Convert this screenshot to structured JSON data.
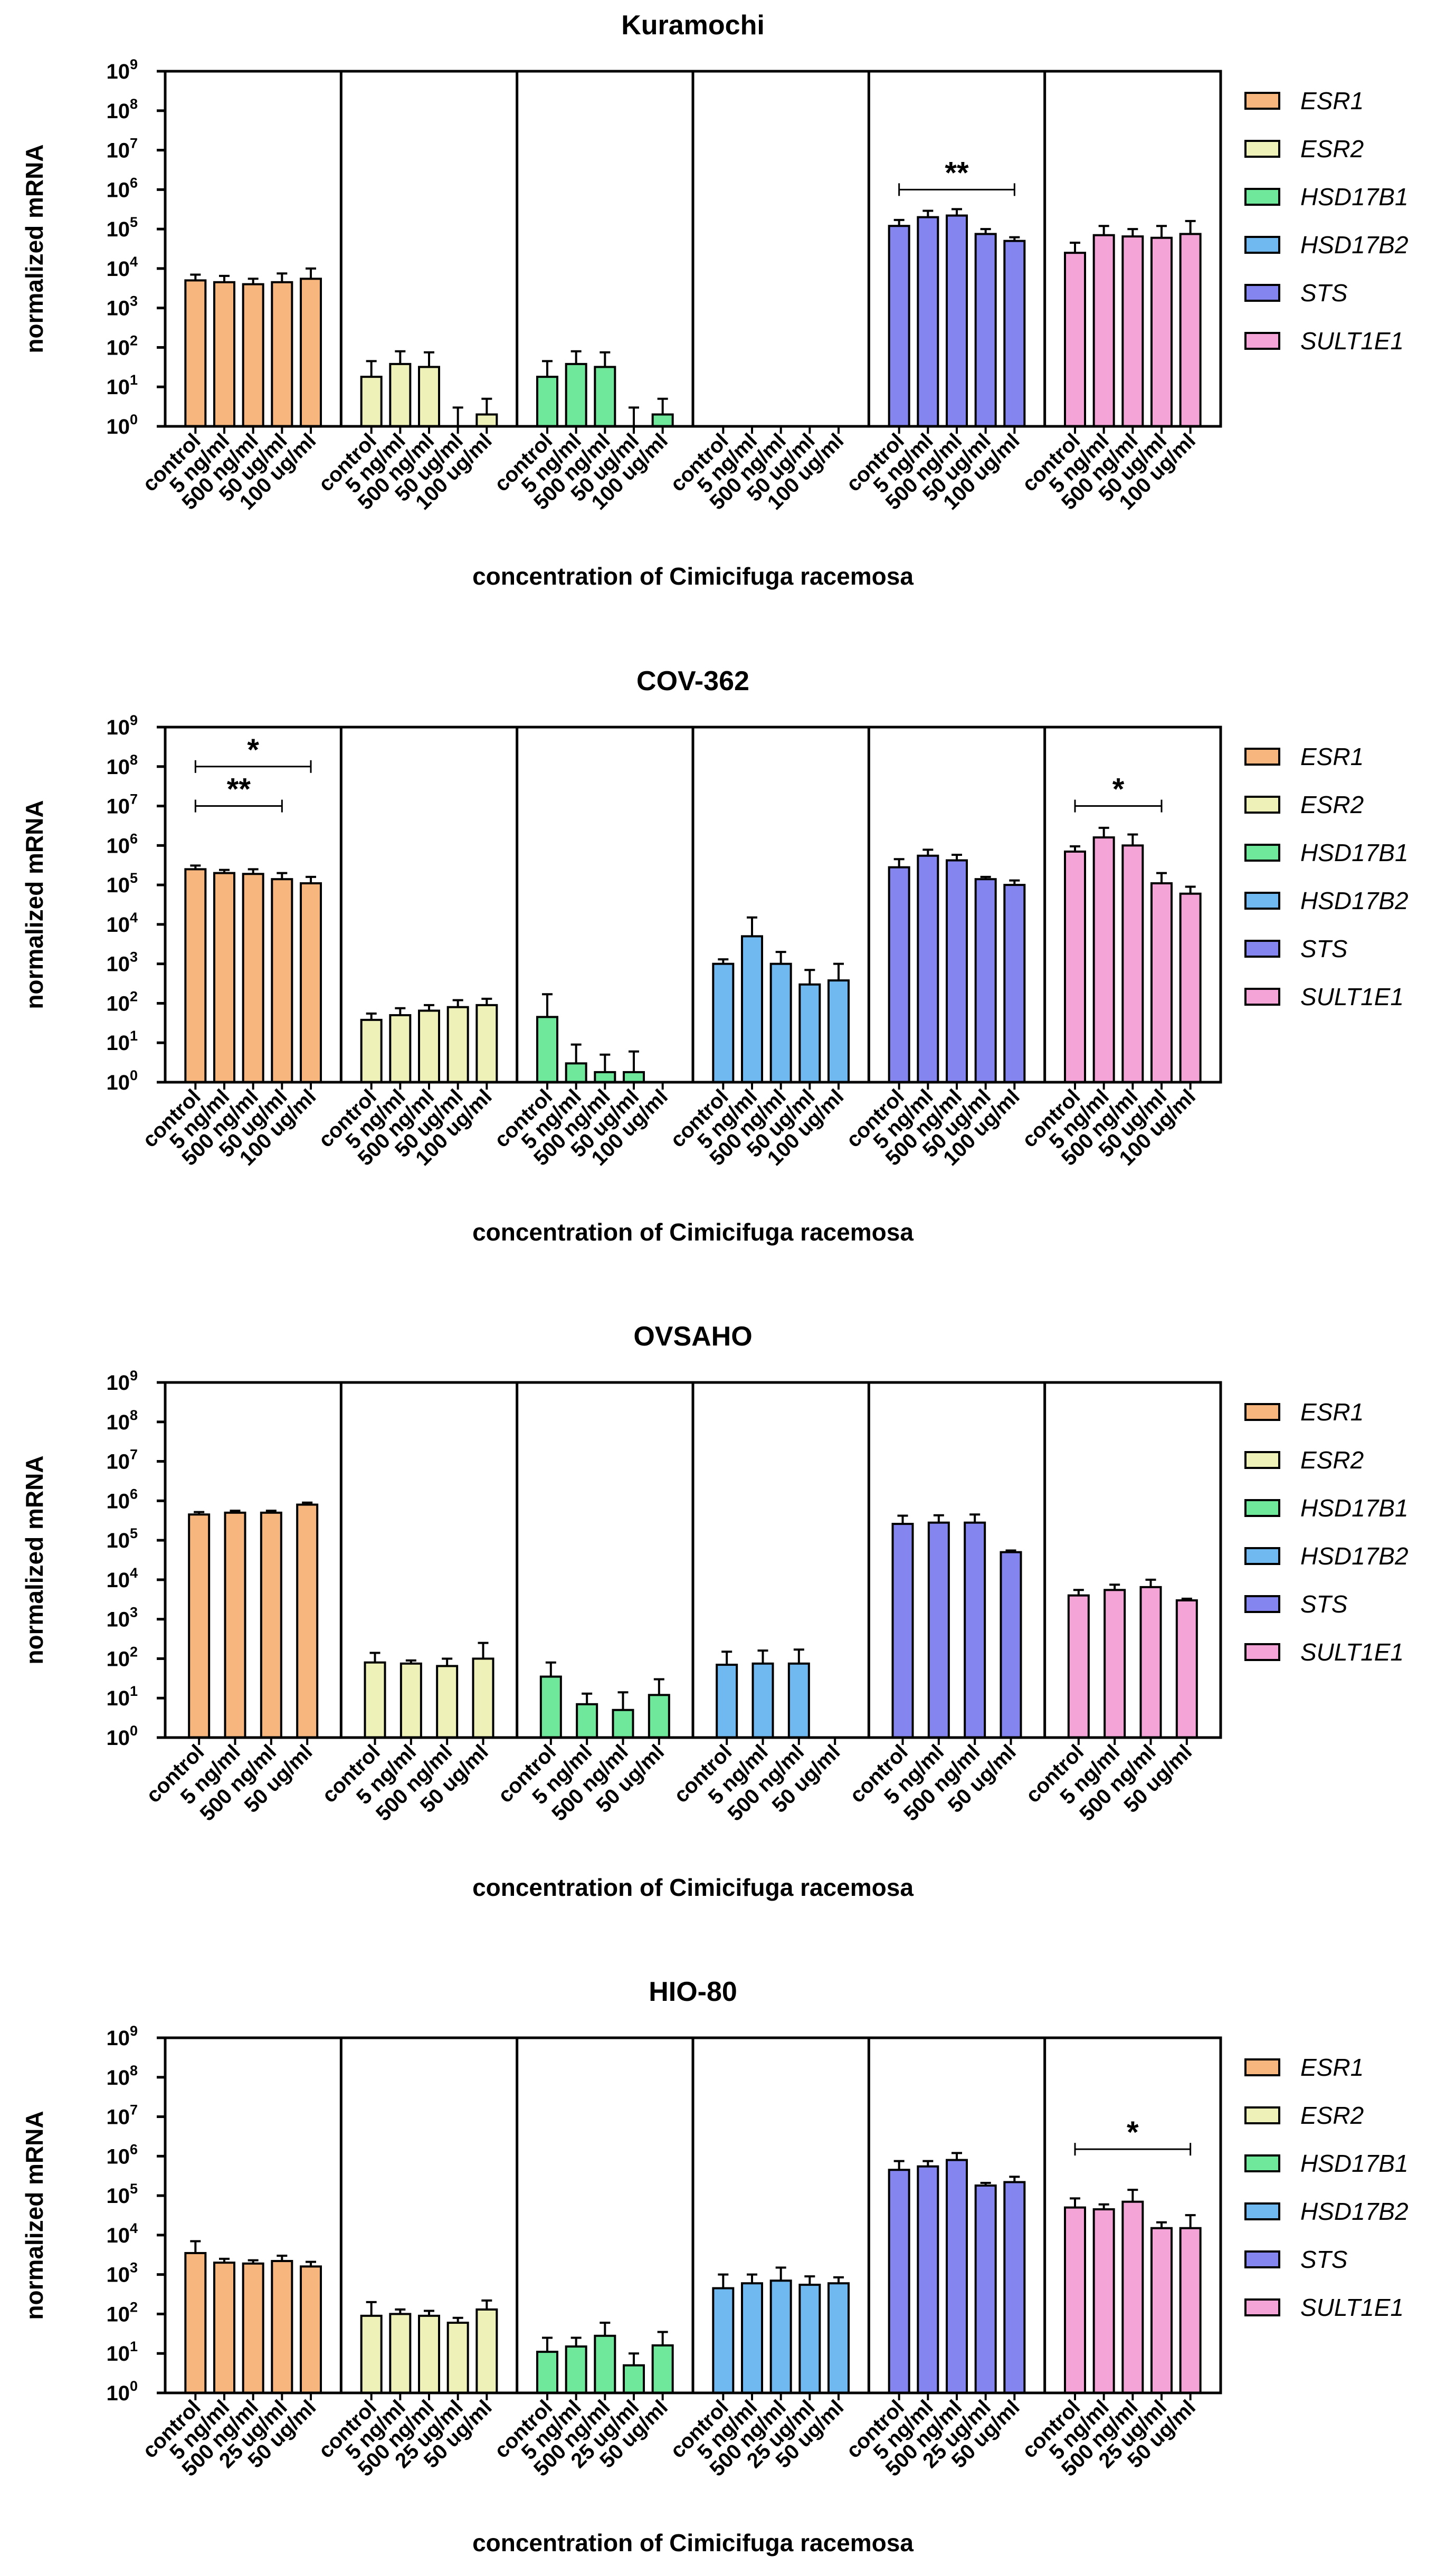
{
  "colors": {
    "ESR1": "#f6b67e",
    "ESR2": "#eef2b8",
    "HSD17B1": "#6fe89c",
    "HSD17B2": "#6fb8f0",
    "STS": "#8585f0",
    "SULT1E1": "#f4a4d6",
    "stroke": "#000000"
  },
  "chart_data": [
    {
      "type": "bar",
      "title": "Kuramochi",
      "xlabel": "concentration of Cimicifuga racemosa",
      "ylabel": "normalized mRNA",
      "yscale": "log10",
      "ylim": [
        1,
        1000000000
      ],
      "yticks": [
        {
          "base": "10",
          "exp": "0"
        },
        {
          "base": "10",
          "exp": "1"
        },
        {
          "base": "10",
          "exp": "2"
        },
        {
          "base": "10",
          "exp": "3"
        },
        {
          "base": "10",
          "exp": "4"
        },
        {
          "base": "10",
          "exp": "5"
        },
        {
          "base": "10",
          "exp": "6"
        },
        {
          "base": "10",
          "exp": "7"
        },
        {
          "base": "10",
          "exp": "8"
        },
        {
          "base": "10",
          "exp": "9"
        }
      ],
      "categories": [
        "control",
        "5 ng/ml",
        "500 ng/ml",
        "50 ug/ml",
        "100 ug/ml"
      ],
      "series": [
        {
          "name": "ESR1",
          "values": [
            5000,
            4500,
            4000,
            4500,
            5500
          ],
          "errors": [
            7000,
            6500,
            5500,
            7500,
            10000
          ]
        },
        {
          "name": "ESR2",
          "values": [
            18,
            38,
            32,
            1,
            2
          ],
          "errors": [
            45,
            80,
            75,
            3,
            5
          ]
        },
        {
          "name": "HSD17B1",
          "values": [
            18,
            38,
            32,
            1,
            2
          ],
          "errors": [
            45,
            80,
            75,
            3,
            5
          ]
        },
        {
          "name": "HSD17B2",
          "values": [
            1,
            1,
            1,
            1,
            1
          ],
          "errors": [
            1,
            1,
            1,
            1,
            1
          ]
        },
        {
          "name": "STS",
          "values": [
            120000,
            200000,
            220000,
            75000,
            50000
          ],
          "errors": [
            170000,
            290000,
            320000,
            100000,
            62000
          ]
        },
        {
          "name": "SULT1E1",
          "values": [
            25000,
            70000,
            65000,
            60000,
            75000
          ],
          "errors": [
            45000,
            120000,
            100000,
            120000,
            160000
          ]
        }
      ],
      "significance": [
        {
          "series": "STS",
          "from": 0,
          "to": 4,
          "label": "**",
          "y": 1000000
        }
      ]
    },
    {
      "type": "bar",
      "title": "COV-362",
      "xlabel": "concentration of Cimicifuga racemosa",
      "ylabel": "normalized mRNA",
      "yscale": "log10",
      "ylim": [
        1,
        1000000000
      ],
      "yticks": [
        {
          "base": "10",
          "exp": "0"
        },
        {
          "base": "10",
          "exp": "1"
        },
        {
          "base": "10",
          "exp": "2"
        },
        {
          "base": "10",
          "exp": "3"
        },
        {
          "base": "10",
          "exp": "4"
        },
        {
          "base": "10",
          "exp": "5"
        },
        {
          "base": "10",
          "exp": "6"
        },
        {
          "base": "10",
          "exp": "7"
        },
        {
          "base": "10",
          "exp": "8"
        },
        {
          "base": "10",
          "exp": "9"
        }
      ],
      "categories": [
        "control",
        "5 ng/ml",
        "500 ng/ml",
        "50 ug/ml",
        "100 ug/ml"
      ],
      "series": [
        {
          "name": "ESR1",
          "values": [
            250000,
            200000,
            190000,
            140000,
            110000
          ],
          "errors": [
            310000,
            240000,
            250000,
            200000,
            160000
          ]
        },
        {
          "name": "ESR2",
          "values": [
            38,
            50,
            65,
            80,
            90
          ],
          "errors": [
            55,
            75,
            90,
            120,
            130
          ]
        },
        {
          "name": "HSD17B1",
          "values": [
            45,
            3,
            1.8,
            1.8,
            1
          ],
          "errors": [
            170,
            9,
            5,
            6,
            1
          ]
        },
        {
          "name": "HSD17B2",
          "values": [
            1000,
            5000,
            1000,
            300,
            380
          ],
          "errors": [
            1300,
            15000,
            2000,
            700,
            1000
          ]
        },
        {
          "name": "STS",
          "values": [
            280000,
            550000,
            420000,
            140000,
            100000
          ],
          "errors": [
            450000,
            780000,
            580000,
            160000,
            130000
          ]
        },
        {
          "name": "SULT1E1",
          "values": [
            700000,
            1600000,
            1000000,
            110000,
            60000
          ],
          "errors": [
            950000,
            2800000,
            1900000,
            200000,
            90000
          ]
        }
      ],
      "significance": [
        {
          "series": "ESR1",
          "from": 0,
          "to": 4,
          "label": "*",
          "y": 100000000
        },
        {
          "series": "ESR1",
          "from": 0,
          "to": 3,
          "label": "**",
          "y": 10000000
        },
        {
          "series": "SULT1E1",
          "from": 0,
          "to": 3,
          "label": "*",
          "y": 10000000
        }
      ]
    },
    {
      "type": "bar",
      "title": "OVSAHO",
      "xlabel": "concentration of Cimicifuga racemosa",
      "ylabel": "normalized mRNA",
      "yscale": "log10",
      "ylim": [
        1,
        1000000000
      ],
      "yticks": [
        {
          "base": "10",
          "exp": "0"
        },
        {
          "base": "10",
          "exp": "1"
        },
        {
          "base": "10",
          "exp": "2"
        },
        {
          "base": "10",
          "exp": "3"
        },
        {
          "base": "10",
          "exp": "4"
        },
        {
          "base": "10",
          "exp": "5"
        },
        {
          "base": "10",
          "exp": "6"
        },
        {
          "base": "10",
          "exp": "7"
        },
        {
          "base": "10",
          "exp": "8"
        },
        {
          "base": "10",
          "exp": "9"
        }
      ],
      "categories": [
        "control",
        "5 ng/ml",
        "500 ng/ml",
        "50 ug/ml"
      ],
      "series": [
        {
          "name": "ESR1",
          "values": [
            450000,
            500000,
            500000,
            800000
          ],
          "errors": [
            520000,
            560000,
            560000,
            900000
          ]
        },
        {
          "name": "ESR2",
          "values": [
            80,
            75,
            65,
            100
          ],
          "errors": [
            140,
            90,
            100,
            250
          ]
        },
        {
          "name": "HSD17B1",
          "values": [
            35,
            7,
            5,
            12
          ],
          "errors": [
            80,
            13,
            14,
            30
          ]
        },
        {
          "name": "HSD17B2",
          "values": [
            70,
            75,
            75,
            1
          ],
          "errors": [
            150,
            160,
            170,
            1
          ]
        },
        {
          "name": "STS",
          "values": [
            260000,
            280000,
            280000,
            50000
          ],
          "errors": [
            420000,
            430000,
            450000,
            55000
          ]
        },
        {
          "name": "SULT1E1",
          "values": [
            4000,
            5500,
            6500,
            3000
          ],
          "errors": [
            5500,
            7500,
            10000,
            3300
          ]
        }
      ],
      "significance": []
    },
    {
      "type": "bar",
      "title": "HIO-80",
      "xlabel": "concentration of Cimicifuga racemosa",
      "ylabel": "normalized mRNA",
      "yscale": "log10",
      "ylim": [
        1,
        1000000000
      ],
      "yticks": [
        {
          "base": "10",
          "exp": "0"
        },
        {
          "base": "10",
          "exp": "1"
        },
        {
          "base": "10",
          "exp": "2"
        },
        {
          "base": "10",
          "exp": "3"
        },
        {
          "base": "10",
          "exp": "4"
        },
        {
          "base": "10",
          "exp": "5"
        },
        {
          "base": "10",
          "exp": "6"
        },
        {
          "base": "10",
          "exp": "7"
        },
        {
          "base": "10",
          "exp": "8"
        },
        {
          "base": "10",
          "exp": "9"
        }
      ],
      "categories": [
        "control",
        "5 ng/ml",
        "500 ng/ml",
        "25 ug/ml",
        "50 ug/ml"
      ],
      "series": [
        {
          "name": "ESR1",
          "values": [
            3500,
            2000,
            1900,
            2200,
            1600
          ],
          "errors": [
            7000,
            2500,
            2300,
            3000,
            2100
          ]
        },
        {
          "name": "ESR2",
          "values": [
            90,
            100,
            90,
            60,
            130
          ],
          "errors": [
            200,
            130,
            120,
            80,
            220
          ]
        },
        {
          "name": "HSD17B1",
          "values": [
            11,
            15,
            28,
            5,
            16
          ],
          "errors": [
            25,
            25,
            60,
            10,
            35
          ]
        },
        {
          "name": "HSD17B2",
          "values": [
            450,
            600,
            700,
            550,
            600
          ],
          "errors": [
            1000,
            1000,
            1500,
            900,
            850
          ]
        },
        {
          "name": "STS",
          "values": [
            450000,
            550000,
            800000,
            180000,
            220000
          ],
          "errors": [
            750000,
            750000,
            1200000,
            210000,
            300000
          ]
        },
        {
          "name": "SULT1E1",
          "values": [
            50000,
            45000,
            70000,
            15000,
            15000
          ],
          "errors": [
            85000,
            60000,
            140000,
            21000,
            32000
          ]
        }
      ],
      "significance": [
        {
          "series": "SULT1E1",
          "from": 0,
          "to": 4,
          "label": "*",
          "y": 1500000
        }
      ]
    }
  ]
}
